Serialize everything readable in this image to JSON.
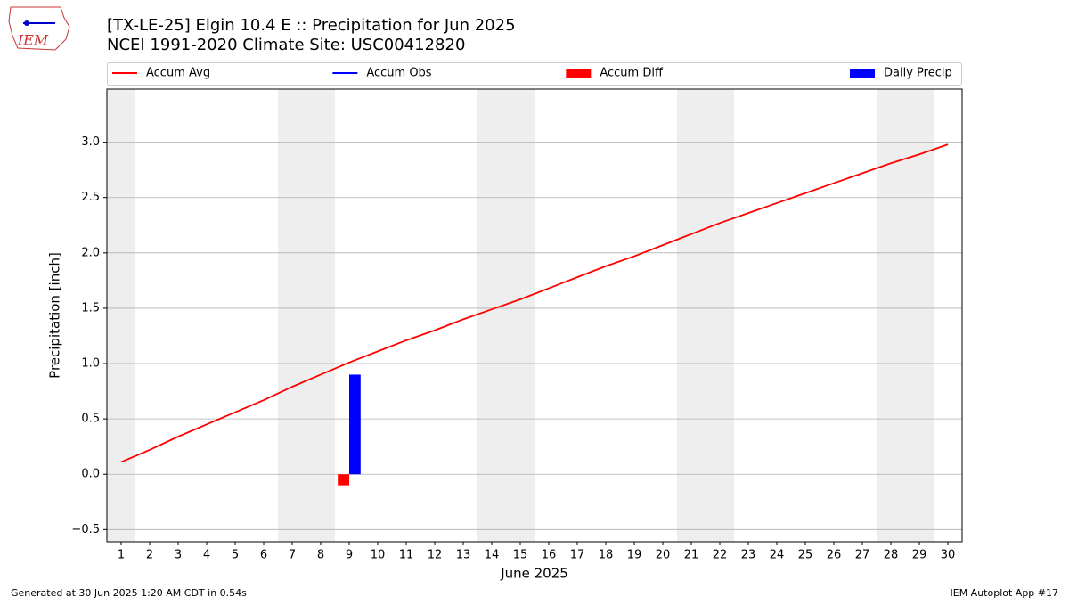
{
  "chart_data": {
    "type": "line",
    "logo_text": "IEM",
    "title": "[TX-LE-25] Elgin 10.4 E :: Precipitation for Jun 2025",
    "subtitle": "NCEI 1991-2020 Climate Site: USC00412820",
    "ylabel": "Precipitation [inch]",
    "xlabel": "June 2025",
    "footer_left": "Generated at 30 Jun 2025 1:20 AM CDT in 0.54s",
    "footer_right": "IEM Autoplot App #17",
    "x": [
      1,
      2,
      3,
      4,
      5,
      6,
      7,
      8,
      9,
      10,
      11,
      12,
      13,
      14,
      15,
      16,
      17,
      18,
      19,
      20,
      21,
      22,
      23,
      24,
      25,
      26,
      27,
      28,
      29,
      30
    ],
    "xticks": [
      1,
      2,
      3,
      4,
      5,
      6,
      7,
      8,
      9,
      10,
      11,
      12,
      13,
      14,
      15,
      16,
      17,
      18,
      19,
      20,
      21,
      22,
      23,
      24,
      25,
      26,
      27,
      28,
      29,
      30
    ],
    "xlim": [
      0.5,
      30.5
    ],
    "ylim": [
      -0.61,
      3.48
    ],
    "yticks": [
      {
        "value": -0.5,
        "label": "−0.5"
      },
      {
        "value": 0,
        "label": "0.0"
      },
      {
        "value": 0.5,
        "label": "0.5"
      },
      {
        "value": 1,
        "label": "1.0"
      },
      {
        "value": 1.5,
        "label": "1.5"
      },
      {
        "value": 2,
        "label": "2.0"
      },
      {
        "value": 2.5,
        "label": "2.5"
      },
      {
        "value": 3,
        "label": "3.0"
      }
    ],
    "grid": true,
    "shade": [
      [
        0.5,
        1.5
      ],
      [
        6.5,
        8.5
      ],
      [
        13.5,
        15.5
      ],
      [
        20.5,
        22.5
      ],
      [
        27.5,
        29.5
      ]
    ],
    "shade_color": "#eeeeee",
    "series": [
      {
        "name": "Accum Avg",
        "color": "#ff0000",
        "kind": "line",
        "values": [
          0.11,
          0.22,
          0.34,
          0.45,
          0.56,
          0.67,
          0.79,
          0.9,
          1.01,
          1.11,
          1.21,
          1.3,
          1.4,
          1.49,
          1.58,
          1.68,
          1.78,
          1.88,
          1.97,
          2.07,
          2.17,
          2.27,
          2.36,
          2.45,
          2.54,
          2.63,
          2.72,
          2.81,
          2.89,
          2.98
        ]
      },
      {
        "name": "Accum Obs",
        "color": "#0000ff",
        "kind": "line",
        "values": [
          null,
          null,
          null,
          null,
          null,
          null,
          null,
          null,
          null,
          null,
          null,
          null,
          null,
          null,
          null,
          null,
          null,
          null,
          null,
          null,
          null,
          null,
          null,
          null,
          null,
          null,
          null,
          null,
          null,
          null
        ]
      },
      {
        "name": "Accum Diff",
        "color": "#ff0000",
        "kind": "bar",
        "offset": -0.4,
        "values": [
          null,
          null,
          null,
          null,
          null,
          null,
          null,
          null,
          -0.1,
          null,
          null,
          null,
          null,
          null,
          null,
          null,
          null,
          null,
          null,
          null,
          null,
          null,
          null,
          null,
          null,
          null,
          null,
          null,
          null,
          null
        ]
      },
      {
        "name": "Daily Precip",
        "color": "#0000ff",
        "kind": "bar",
        "offset": 0,
        "values": [
          null,
          null,
          null,
          null,
          null,
          null,
          null,
          null,
          0.9,
          null,
          null,
          null,
          null,
          null,
          null,
          null,
          null,
          null,
          null,
          null,
          null,
          null,
          null,
          null,
          null,
          null,
          null,
          null,
          null,
          null
        ]
      }
    ]
  }
}
